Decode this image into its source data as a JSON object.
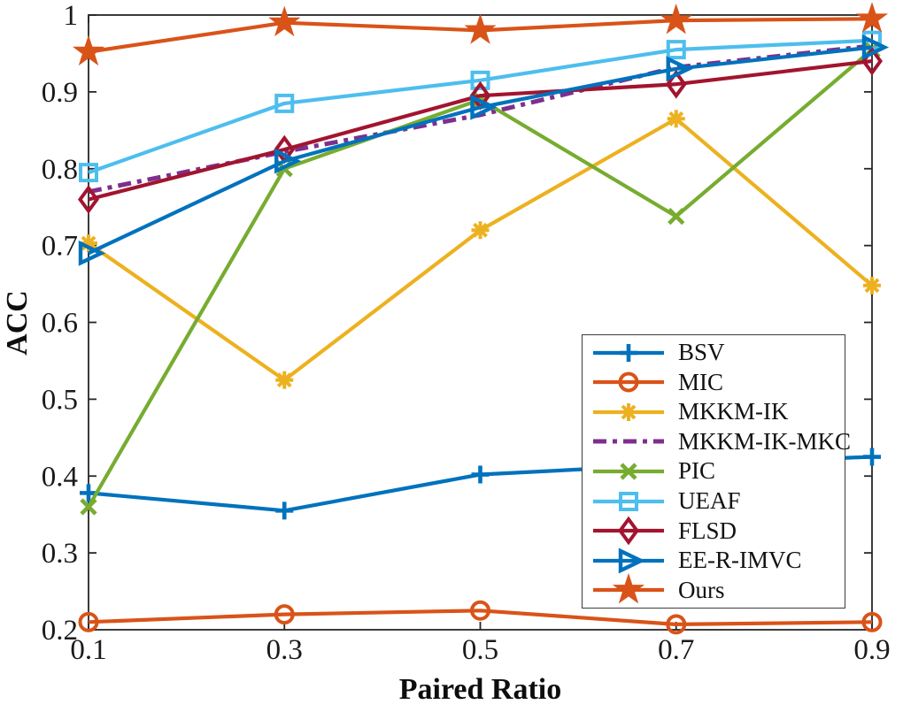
{
  "figure": {
    "background": "#ffffff",
    "axis_color": "#262626",
    "text_color": "#1a1a1a"
  },
  "chart_data": {
    "type": "line",
    "title": "",
    "xlabel": "Paired Ratio",
    "ylabel": "ACC",
    "x": [
      0.1,
      0.3,
      0.5,
      0.7,
      0.9
    ],
    "xlim": [
      0.1,
      0.9
    ],
    "ylim": [
      0.2,
      1.0
    ],
    "xtick_labels": [
      "0.1",
      "0.3",
      "0.5",
      "0.7",
      "0.9"
    ],
    "yticks": [
      0.2,
      0.3,
      0.4,
      0.5,
      0.6,
      0.7,
      0.8,
      0.9,
      1.0
    ],
    "ytick_labels": [
      "0.2",
      "0.3",
      "0.4",
      "0.5",
      "0.6",
      "0.7",
      "0.8",
      "0.9",
      "1"
    ],
    "grid": false,
    "box": true,
    "legend_position": "inside-lower-right",
    "series": [
      {
        "name": "BSV",
        "color": "#0072BD",
        "marker": "plus",
        "linestyle": "solid",
        "values": [
          0.378,
          0.355,
          0.402,
          0.415,
          0.425
        ]
      },
      {
        "name": "MIC",
        "color": "#D95319",
        "marker": "circle",
        "linestyle": "solid",
        "values": [
          0.21,
          0.22,
          0.225,
          0.207,
          0.21
        ]
      },
      {
        "name": "MKKM-IK",
        "color": "#EDB120",
        "marker": "asterisk",
        "linestyle": "solid",
        "values": [
          0.703,
          0.525,
          0.72,
          0.865,
          0.648
        ]
      },
      {
        "name": "MKKM-IK-MKC",
        "color": "#7E2F8E",
        "marker": "none",
        "linestyle": "dashdot",
        "values": [
          0.77,
          0.822,
          0.87,
          0.932,
          0.96
        ]
      },
      {
        "name": "PIC",
        "color": "#77AC30",
        "marker": "x",
        "linestyle": "solid",
        "values": [
          0.36,
          0.8,
          0.89,
          0.738,
          0.955
        ]
      },
      {
        "name": "UEAF",
        "color": "#4DBEEE",
        "marker": "square",
        "linestyle": "solid",
        "values": [
          0.795,
          0.885,
          0.915,
          0.955,
          0.967
        ]
      },
      {
        "name": "FLSD",
        "color": "#A2142F",
        "marker": "diamond",
        "linestyle": "solid",
        "values": [
          0.76,
          0.825,
          0.895,
          0.91,
          0.94
        ]
      },
      {
        "name": "EE-R-IMVC",
        "color": "#0072BD",
        "marker": "triangle-right",
        "linestyle": "solid",
        "values": [
          0.69,
          0.81,
          0.88,
          0.93,
          0.958
        ]
      },
      {
        "name": "Ours",
        "color": "#D95319",
        "marker": "star",
        "linestyle": "solid",
        "values": [
          0.952,
          0.99,
          0.98,
          0.993,
          0.995
        ]
      }
    ]
  }
}
